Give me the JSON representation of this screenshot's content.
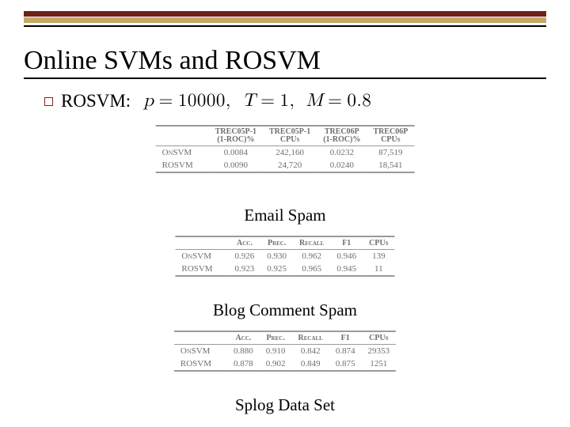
{
  "title": "Online SVMs and ROSVM",
  "bars": {
    "top_band_color": "#702115",
    "mid_band_color": "#c5aa67",
    "thin_line_color": "#000000"
  },
  "bullet": {
    "label": "ROSVM:"
  },
  "math": {
    "p": "10000",
    "T": "1",
    "M": "0.8"
  },
  "captions": {
    "email": "Email Spam",
    "blog": "Blog Comment Spam",
    "splog": "Splog Data Set"
  },
  "table_email": {
    "headers": [
      "",
      "TREC05P-1\n(1-ROC)%",
      "TREC05P-1\nCPUs",
      "TREC06P\n(1-ROC)%",
      "TREC06P\nCPUs"
    ],
    "rows": [
      [
        "OnSVM",
        "0.0084",
        "242,160",
        "0.0232",
        "87,519"
      ],
      [
        "ROSVM",
        "0.0090",
        "24,720",
        "0.0240",
        "18,541"
      ]
    ]
  },
  "table_blog": {
    "headers": [
      "",
      "Acc.",
      "Prec.",
      "Recall",
      "F1",
      "CPUs"
    ],
    "rows": [
      [
        "OnSVM",
        "0.926",
        "0.930",
        "0.962",
        "0.946",
        "139"
      ],
      [
        "ROSVM",
        "0.923",
        "0.925",
        "0.965",
        "0.945",
        "11"
      ]
    ]
  },
  "table_splog": {
    "headers": [
      "",
      "Acc.",
      "Prec.",
      "Recall",
      "F1",
      "CPUs"
    ],
    "rows": [
      [
        "OnSVM",
        "0.880",
        "0.910",
        "0.842",
        "0.874",
        "29353"
      ],
      [
        "ROSVM",
        "0.878",
        "0.902",
        "0.849",
        "0.875",
        "1251"
      ]
    ]
  }
}
